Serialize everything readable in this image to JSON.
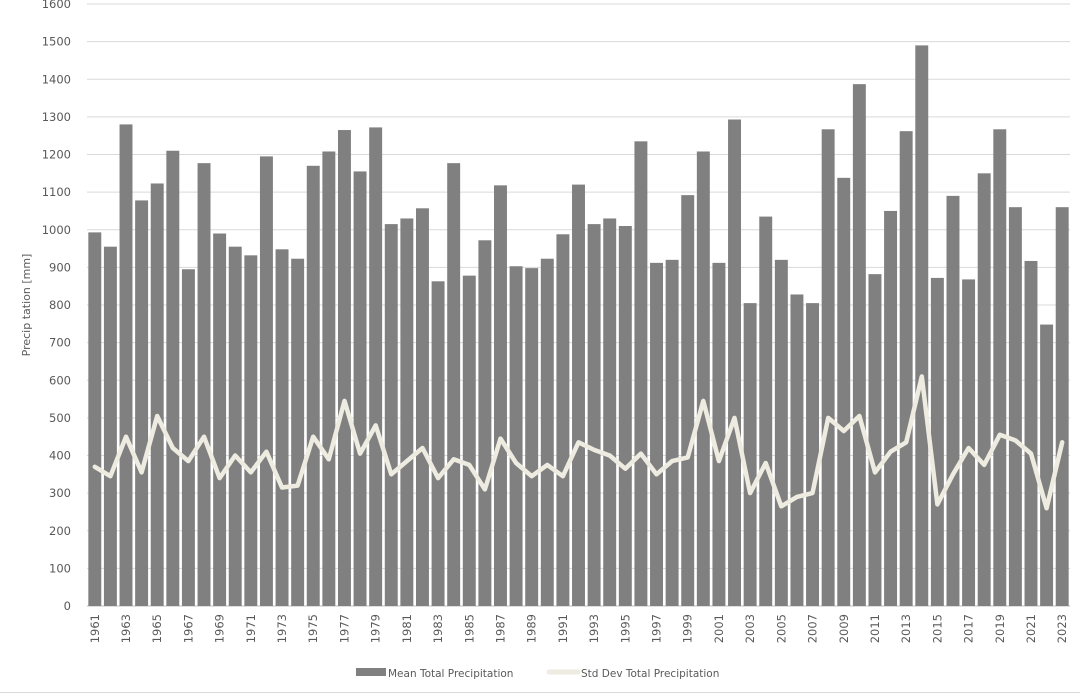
{
  "chart_data": {
    "type": "bar",
    "title": "",
    "xlabel": "",
    "ylabel": "Precip tation [mm]",
    "ylim": [
      0,
      1600
    ],
    "yticks": [
      0,
      100,
      200,
      300,
      400,
      500,
      600,
      700,
      800,
      900,
      1000,
      1100,
      1200,
      1300,
      1400,
      1500,
      1600
    ],
    "grid": true,
    "legend_position": "bottom",
    "colors": {
      "bar": "#808080",
      "line": "#eeece1",
      "grid": "#d9d9d9"
    },
    "categories": [
      1961,
      1962,
      1963,
      1964,
      1965,
      1966,
      1967,
      1968,
      1969,
      1970,
      1971,
      1972,
      1973,
      1974,
      1975,
      1976,
      1977,
      1978,
      1979,
      1980,
      1981,
      1982,
      1983,
      1984,
      1985,
      1986,
      1987,
      1988,
      1989,
      1990,
      1991,
      1992,
      1993,
      1994,
      1995,
      1996,
      1997,
      1998,
      1999,
      2000,
      2001,
      2002,
      2003,
      2004,
      2005,
      2006,
      2007,
      2008,
      2009,
      2010,
      2011,
      2012,
      2013,
      2014,
      2015,
      2016,
      2017,
      2018,
      2019,
      2020,
      2021,
      2022,
      2023
    ],
    "series": [
      {
        "name": "Mean Total Precipitation",
        "kind": "bar",
        "values": [
          993,
          955,
          1280,
          1078,
          1123,
          1210,
          895,
          1177,
          990,
          955,
          932,
          1195,
          948,
          923,
          1170,
          1208,
          1265,
          1155,
          1272,
          1015,
          1030,
          1057,
          863,
          1177,
          878,
          972,
          1118,
          903,
          898,
          923,
          988,
          1120,
          1015,
          1030,
          1010,
          1235,
          912,
          920,
          1092,
          1208,
          912,
          1293,
          805,
          1035,
          920,
          828,
          805,
          1267,
          1138,
          1387,
          882,
          1050,
          1262,
          1490,
          872,
          1090,
          868,
          1150,
          1267,
          1060,
          917,
          748,
          1060
        ]
      },
      {
        "name": "Std Dev Total Precipitation",
        "kind": "line",
        "values": [
          370,
          345,
          450,
          355,
          505,
          420,
          385,
          450,
          340,
          400,
          355,
          410,
          315,
          320,
          450,
          390,
          545,
          405,
          480,
          350,
          385,
          420,
          340,
          390,
          375,
          310,
          445,
          380,
          345,
          375,
          345,
          435,
          415,
          400,
          365,
          405,
          350,
          385,
          395,
          545,
          385,
          500,
          300,
          380,
          265,
          290,
          300,
          500,
          465,
          505,
          355,
          410,
          435,
          610,
          270,
          350,
          420,
          375,
          455,
          440,
          405,
          260,
          435
        ]
      }
    ]
  }
}
